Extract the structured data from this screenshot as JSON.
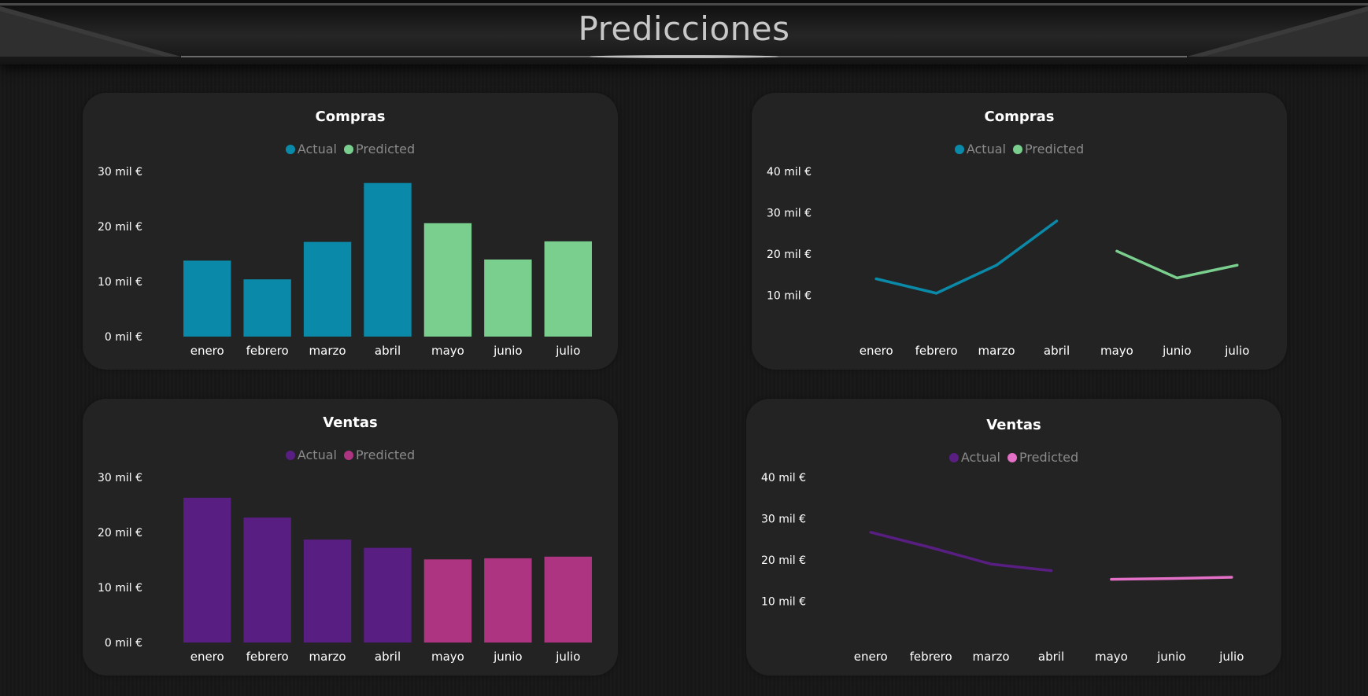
{
  "page": {
    "title": "Predicciones"
  },
  "colors": {
    "compras_actual": "#0A8AA8",
    "compras_predicted": "#7ACF8E",
    "ventas_actual": "#581E82",
    "ventas_bar_predicted": "#AD3481",
    "ventas_line_predicted": "#E46FC7"
  },
  "chart_data": [
    {
      "id": "compras-bar",
      "type": "bar",
      "title": "Compras",
      "legend": [
        "Actual",
        "Predicted"
      ],
      "categories": [
        "enero",
        "febrero",
        "marzo",
        "abril",
        "mayo",
        "junio",
        "julio"
      ],
      "values": [
        13.8,
        10.4,
        17.2,
        27.9,
        20.6,
        14.0,
        17.3
      ],
      "series_split": {
        "actual_count": 4
      },
      "yticks": [
        "0 mil €",
        "10 mil €",
        "20 mil €",
        "30 mil €"
      ],
      "ylim": [
        0,
        30
      ]
    },
    {
      "id": "compras-line",
      "type": "line",
      "title": "Compras",
      "legend": [
        "Actual",
        "Predicted"
      ],
      "categories": [
        "enero",
        "febrero",
        "marzo",
        "abril",
        "mayo",
        "junio",
        "julio"
      ],
      "series": [
        {
          "name": "Actual",
          "values": [
            14.0,
            10.5,
            17.3,
            28.0,
            null,
            null,
            null
          ]
        },
        {
          "name": "Predicted",
          "values": [
            null,
            null,
            null,
            null,
            20.7,
            14.2,
            17.3
          ]
        }
      ],
      "yticks": [
        "10 mil €",
        "20 mil €",
        "30 mil €",
        "40 mil €"
      ],
      "ylim": [
        0,
        40
      ]
    },
    {
      "id": "ventas-bar",
      "type": "bar",
      "title": "Ventas",
      "legend": [
        "Actual",
        "Predicted"
      ],
      "categories": [
        "enero",
        "febrero",
        "marzo",
        "abril",
        "mayo",
        "junio",
        "julio"
      ],
      "values": [
        26.3,
        22.7,
        18.7,
        17.2,
        15.1,
        15.3,
        15.6
      ],
      "series_split": {
        "actual_count": 4
      },
      "yticks": [
        "0 mil €",
        "10 mil €",
        "20 mil €",
        "30 mil €"
      ],
      "ylim": [
        0,
        30
      ]
    },
    {
      "id": "ventas-line",
      "type": "line",
      "title": "Ventas",
      "legend": [
        "Actual",
        "Predicted"
      ],
      "categories": [
        "enero",
        "febrero",
        "marzo",
        "abril",
        "mayo",
        "junio",
        "julio"
      ],
      "series": [
        {
          "name": "Actual",
          "values": [
            26.7,
            23.0,
            19.0,
            17.4,
            null,
            null,
            null
          ]
        },
        {
          "name": "Predicted",
          "values": [
            null,
            null,
            null,
            null,
            15.3,
            15.5,
            15.8
          ]
        }
      ],
      "yticks": [
        "10 mil €",
        "20 mil €",
        "30 mil €",
        "40 mil €"
      ],
      "ylim": [
        0,
        40
      ]
    }
  ]
}
